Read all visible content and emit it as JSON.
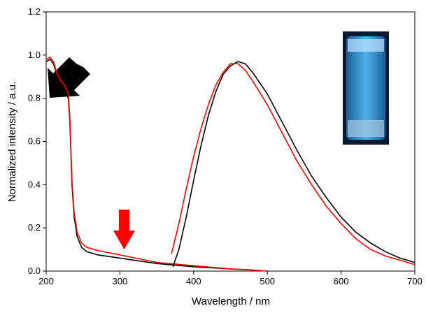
{
  "chart_data": {
    "type": "line",
    "x_label": "Wavelength / nm",
    "y_label": "Normalized intensity / a.u.",
    "xlim": [
      200,
      700
    ],
    "ylim": [
      0,
      1.2
    ],
    "xticks": [
      200,
      300,
      400,
      500,
      600,
      700
    ],
    "yticks": [
      {
        "value": 0,
        "label": "0.0"
      },
      0.2,
      0.4,
      0.6,
      0.8,
      {
        "value": 1,
        "label": "1.0"
      },
      1.2
    ],
    "series": [
      {
        "color": "#000000",
        "x": [
          200,
          205,
          210,
          215,
          220,
          225,
          230,
          232,
          235,
          238,
          242,
          248,
          255,
          270,
          300,
          350,
          400,
          450,
          480
        ],
        "values": [
          0.97,
          0.98,
          0.96,
          0.9,
          0.86,
          0.84,
          0.8,
          0.7,
          0.4,
          0.25,
          0.16,
          0.11,
          0.09,
          0.075,
          0.06,
          0.035,
          0.02,
          0.01,
          0.005
        ]
      },
      {
        "color": "#ff0000",
        "x": [
          200,
          205,
          210,
          215,
          220,
          225,
          230,
          232,
          235,
          238,
          242,
          248,
          255,
          270,
          300,
          350,
          400,
          450,
          480,
          500
        ],
        "values": [
          0.98,
          0.99,
          0.97,
          0.91,
          0.88,
          0.86,
          0.82,
          0.72,
          0.42,
          0.27,
          0.18,
          0.13,
          0.11,
          0.095,
          0.075,
          0.04,
          0.025,
          0.01,
          0.005,
          0
        ]
      },
      {
        "color": "#000000",
        "x": [
          372,
          380,
          390,
          400,
          410,
          420,
          430,
          440,
          450,
          460,
          470,
          480,
          500,
          520,
          540,
          560,
          580,
          600,
          620,
          640,
          660,
          680,
          700
        ],
        "values": [
          0.02,
          0.1,
          0.25,
          0.42,
          0.58,
          0.72,
          0.83,
          0.91,
          0.95,
          0.97,
          0.96,
          0.92,
          0.82,
          0.69,
          0.56,
          0.44,
          0.34,
          0.25,
          0.18,
          0.13,
          0.09,
          0.06,
          0.04
        ]
      },
      {
        "color": "#ff0000",
        "x": [
          370,
          380,
          390,
          400,
          410,
          420,
          430,
          440,
          450,
          460,
          470,
          480,
          500,
          520,
          540,
          560,
          580,
          600,
          620,
          640,
          660,
          680,
          700
        ],
        "values": [
          0.08,
          0.22,
          0.38,
          0.53,
          0.66,
          0.77,
          0.86,
          0.92,
          0.96,
          0.96,
          0.93,
          0.88,
          0.77,
          0.64,
          0.51,
          0.4,
          0.3,
          0.22,
          0.15,
          0.1,
          0.07,
          0.05,
          0.03
        ]
      }
    ]
  }
}
